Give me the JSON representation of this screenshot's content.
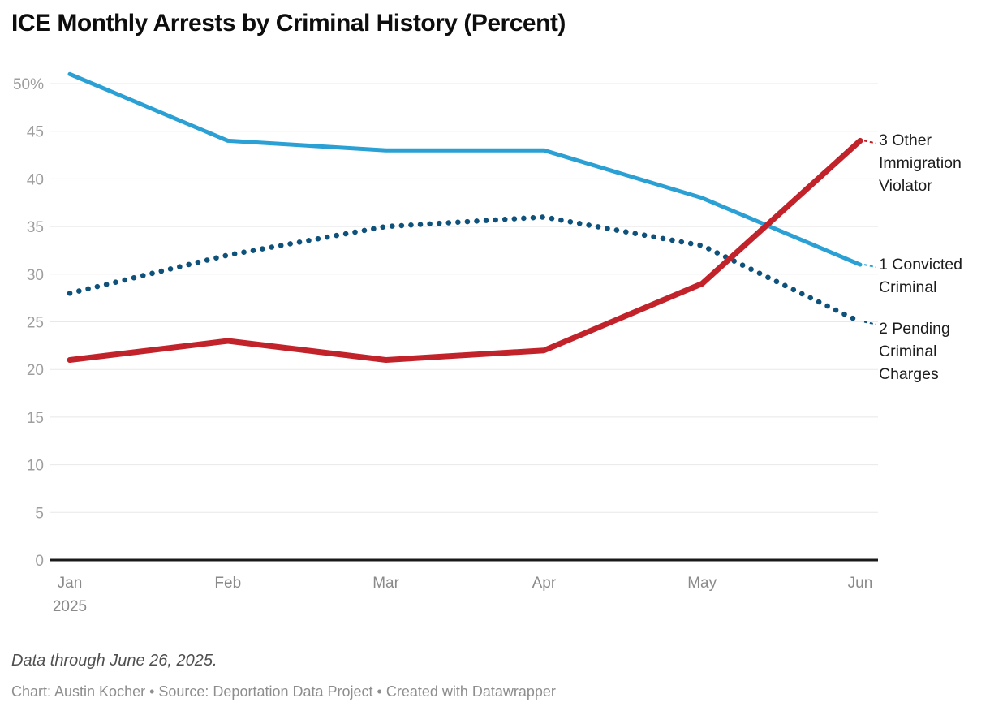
{
  "title": "ICE Monthly Arrests by Criminal History (Percent)",
  "chart_data": {
    "type": "line",
    "title": "ICE Monthly Arrests by Criminal History (Percent)",
    "categories": [
      "Jan",
      "Feb",
      "Mar",
      "Apr",
      "May",
      "Jun"
    ],
    "x_first_sublabel": "2025",
    "series": [
      {
        "name": "1 Convicted Criminal",
        "values": [
          51,
          44,
          43,
          43,
          38,
          31
        ],
        "color": "#2aa0d4",
        "line_style": "solid",
        "line_width": 5
      },
      {
        "name": "2 Pending Criminal Charges",
        "values": [
          28,
          32,
          35,
          36,
          33,
          25
        ],
        "color": "#0e527c",
        "line_style": "dotted",
        "line_width": 6.5
      },
      {
        "name": "3 Other Immigration Violator",
        "values": [
          21,
          23,
          21,
          22,
          29,
          44
        ],
        "color": "#c2232a",
        "line_style": "solid",
        "line_width": 7
      }
    ],
    "xlabel": "",
    "ylabel": "",
    "ylim": [
      0,
      50
    ],
    "y_ticks": [
      0,
      5,
      10,
      15,
      20,
      25,
      30,
      35,
      40,
      45,
      50
    ],
    "y_top_tick_label": "50%",
    "grid": true,
    "legend_position": "right-edge-annotations"
  },
  "footer": {
    "note": "Data through June 26, 2025.",
    "credits": "Chart: Austin Kocher • Source: Deportation Data Project • Created with Datawrapper"
  }
}
